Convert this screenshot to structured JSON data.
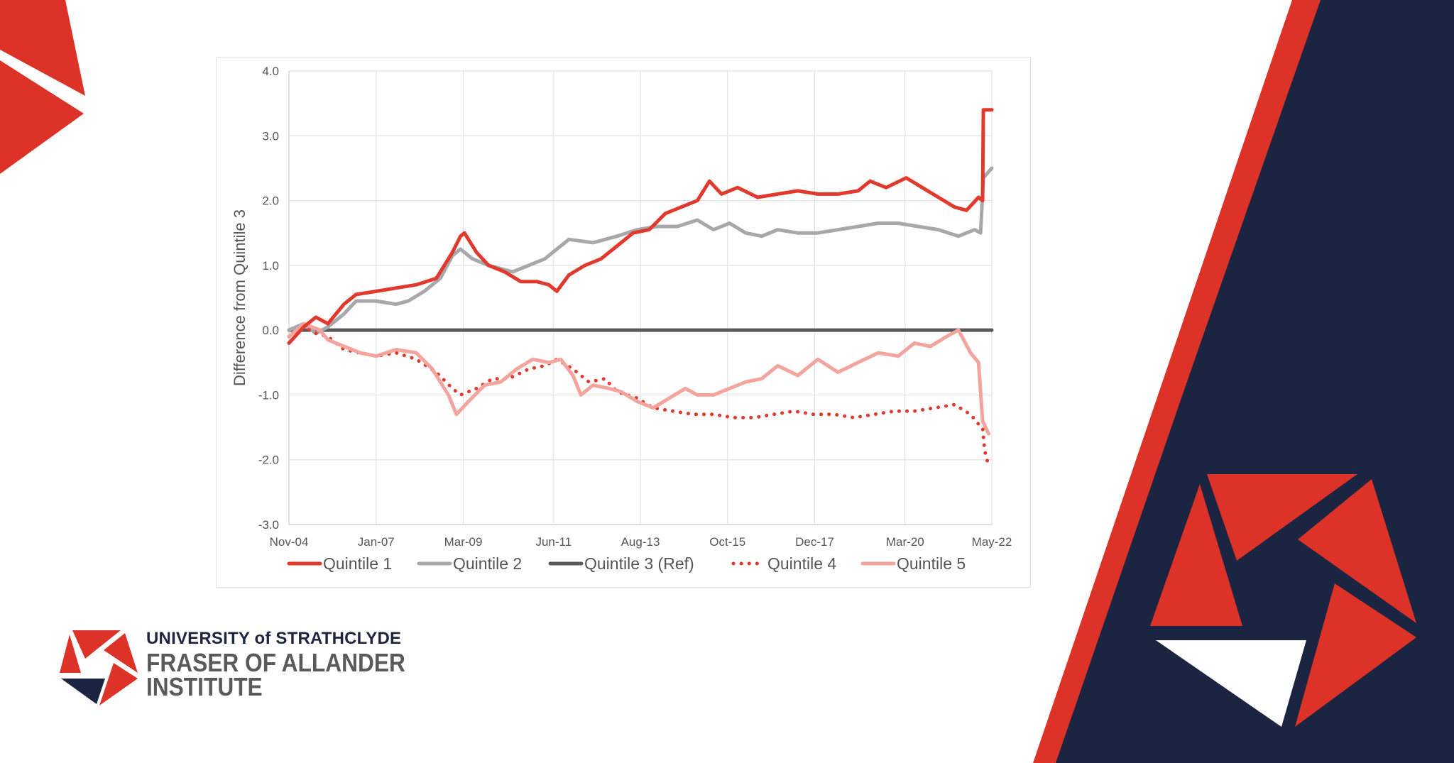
{
  "colors": {
    "navy": "#1b2440",
    "red": "#dc3228",
    "quintile1": "#e03a2e",
    "quintile2": "#a8a8a8",
    "quintile3": "#595959",
    "quintile4": "#e03a2e",
    "quintile5": "#f2a49d"
  },
  "logo": {
    "line1": "UNIVERSITY of STRATHCLYDE",
    "line2": "FRASER OF ALLANDER",
    "line3": "INSTITUTE"
  },
  "chart_data": {
    "type": "line",
    "title": "",
    "xlabel": "",
    "ylabel": "Difference from Quintile 3",
    "ylim": [
      -3.0,
      4.0
    ],
    "yticks": [
      "4.0",
      "3.0",
      "2.0",
      "1.0",
      "0.0",
      "-1.0",
      "-2.0",
      "-3.0"
    ],
    "ytick_values": [
      4,
      3,
      2,
      1,
      0,
      -1,
      -2,
      -3
    ],
    "xticks": [
      "Nov-04",
      "Jan-07",
      "Mar-09",
      "Jun-11",
      "Aug-13",
      "Oct-15",
      "Dec-17",
      "Mar-20",
      "May-22"
    ],
    "xtick_values": [
      2004.83,
      2007.0,
      2009.17,
      2011.42,
      2013.58,
      2015.75,
      2017.92,
      2020.17,
      2022.33
    ],
    "xlim": [
      2004.83,
      2022.33
    ],
    "grid": true,
    "legend_position": "bottom",
    "series": [
      {
        "name": "Quintile 1",
        "style": "solid",
        "points": [
          [
            2004.83,
            -0.2
          ],
          [
            2005.2,
            0.05
          ],
          [
            2005.5,
            0.2
          ],
          [
            2005.8,
            0.1
          ],
          [
            2006.2,
            0.4
          ],
          [
            2006.5,
            0.55
          ],
          [
            2007.0,
            0.6
          ],
          [
            2007.5,
            0.65
          ],
          [
            2008.0,
            0.7
          ],
          [
            2008.5,
            0.8
          ],
          [
            2008.9,
            1.2
          ],
          [
            2009.1,
            1.45
          ],
          [
            2009.2,
            1.5
          ],
          [
            2009.5,
            1.2
          ],
          [
            2009.8,
            1.0
          ],
          [
            2010.2,
            0.9
          ],
          [
            2010.6,
            0.75
          ],
          [
            2011.0,
            0.75
          ],
          [
            2011.3,
            0.7
          ],
          [
            2011.5,
            0.6
          ],
          [
            2011.8,
            0.85
          ],
          [
            2012.2,
            1.0
          ],
          [
            2012.6,
            1.1
          ],
          [
            2013.0,
            1.3
          ],
          [
            2013.4,
            1.5
          ],
          [
            2013.8,
            1.55
          ],
          [
            2014.2,
            1.8
          ],
          [
            2014.6,
            1.9
          ],
          [
            2015.0,
            2.0
          ],
          [
            2015.3,
            2.3
          ],
          [
            2015.6,
            2.1
          ],
          [
            2016.0,
            2.2
          ],
          [
            2016.5,
            2.05
          ],
          [
            2017.0,
            2.1
          ],
          [
            2017.5,
            2.15
          ],
          [
            2018.0,
            2.1
          ],
          [
            2018.5,
            2.1
          ],
          [
            2019.0,
            2.15
          ],
          [
            2019.3,
            2.3
          ],
          [
            2019.7,
            2.2
          ],
          [
            2020.2,
            2.35
          ],
          [
            2020.6,
            2.2
          ],
          [
            2021.0,
            2.05
          ],
          [
            2021.4,
            1.9
          ],
          [
            2021.7,
            1.85
          ],
          [
            2022.0,
            2.05
          ],
          [
            2022.1,
            2.0
          ],
          [
            2022.12,
            3.4
          ],
          [
            2022.33,
            3.4
          ]
        ]
      },
      {
        "name": "Quintile 2",
        "style": "solid",
        "points": [
          [
            2004.83,
            0.0
          ],
          [
            2005.2,
            0.1
          ],
          [
            2005.5,
            -0.05
          ],
          [
            2005.8,
            0.05
          ],
          [
            2006.2,
            0.25
          ],
          [
            2006.5,
            0.45
          ],
          [
            2007.0,
            0.45
          ],
          [
            2007.5,
            0.4
          ],
          [
            2007.8,
            0.45
          ],
          [
            2008.2,
            0.6
          ],
          [
            2008.6,
            0.8
          ],
          [
            2008.9,
            1.15
          ],
          [
            2009.1,
            1.25
          ],
          [
            2009.4,
            1.1
          ],
          [
            2009.8,
            1.0
          ],
          [
            2010.4,
            0.9
          ],
          [
            2010.8,
            1.0
          ],
          [
            2011.2,
            1.1
          ],
          [
            2011.5,
            1.25
          ],
          [
            2011.8,
            1.4
          ],
          [
            2012.4,
            1.35
          ],
          [
            2013.0,
            1.45
          ],
          [
            2013.5,
            1.55
          ],
          [
            2014.0,
            1.6
          ],
          [
            2014.5,
            1.6
          ],
          [
            2015.0,
            1.7
          ],
          [
            2015.4,
            1.55
          ],
          [
            2015.8,
            1.65
          ],
          [
            2016.2,
            1.5
          ],
          [
            2016.6,
            1.45
          ],
          [
            2017.0,
            1.55
          ],
          [
            2017.5,
            1.5
          ],
          [
            2018.0,
            1.5
          ],
          [
            2018.5,
            1.55
          ],
          [
            2019.0,
            1.6
          ],
          [
            2019.5,
            1.65
          ],
          [
            2020.0,
            1.65
          ],
          [
            2020.5,
            1.6
          ],
          [
            2021.0,
            1.55
          ],
          [
            2021.5,
            1.45
          ],
          [
            2021.9,
            1.55
          ],
          [
            2022.05,
            1.5
          ],
          [
            2022.12,
            2.35
          ],
          [
            2022.33,
            2.5
          ]
        ]
      },
      {
        "name": "Quintile 3 (Ref)",
        "style": "solid",
        "points": [
          [
            2004.83,
            0.0
          ],
          [
            2022.33,
            0.0
          ]
        ]
      },
      {
        "name": "Quintile 4",
        "style": "dotted",
        "points": [
          [
            2004.83,
            -0.1
          ],
          [
            2005.2,
            0.05
          ],
          [
            2005.5,
            -0.05
          ],
          [
            2005.8,
            -0.1
          ],
          [
            2006.2,
            -0.3
          ],
          [
            2006.6,
            -0.35
          ],
          [
            2007.0,
            -0.4
          ],
          [
            2007.5,
            -0.35
          ],
          [
            2008.0,
            -0.45
          ],
          [
            2008.5,
            -0.65
          ],
          [
            2008.9,
            -0.9
          ],
          [
            2009.1,
            -1.0
          ],
          [
            2009.5,
            -0.9
          ],
          [
            2009.9,
            -0.75
          ],
          [
            2010.3,
            -0.75
          ],
          [
            2010.8,
            -0.6
          ],
          [
            2011.2,
            -0.55
          ],
          [
            2011.5,
            -0.45
          ],
          [
            2011.9,
            -0.6
          ],
          [
            2012.3,
            -0.8
          ],
          [
            2012.7,
            -0.75
          ],
          [
            2013.0,
            -0.95
          ],
          [
            2013.5,
            -1.05
          ],
          [
            2013.9,
            -1.2
          ],
          [
            2014.4,
            -1.25
          ],
          [
            2014.9,
            -1.3
          ],
          [
            2015.4,
            -1.3
          ],
          [
            2015.9,
            -1.35
          ],
          [
            2016.4,
            -1.35
          ],
          [
            2016.9,
            -1.3
          ],
          [
            2017.4,
            -1.25
          ],
          [
            2017.9,
            -1.3
          ],
          [
            2018.4,
            -1.3
          ],
          [
            2018.9,
            -1.35
          ],
          [
            2019.4,
            -1.3
          ],
          [
            2019.9,
            -1.25
          ],
          [
            2020.4,
            -1.25
          ],
          [
            2020.9,
            -1.2
          ],
          [
            2021.4,
            -1.15
          ],
          [
            2021.8,
            -1.3
          ],
          [
            2022.0,
            -1.45
          ],
          [
            2022.1,
            -1.5
          ],
          [
            2022.15,
            -1.85
          ],
          [
            2022.25,
            -2.1
          ]
        ]
      },
      {
        "name": "Quintile 5",
        "style": "solid",
        "points": [
          [
            2004.83,
            -0.1
          ],
          [
            2005.2,
            0.1
          ],
          [
            2005.4,
            0.05
          ],
          [
            2005.6,
            0.0
          ],
          [
            2005.8,
            -0.15
          ],
          [
            2006.2,
            -0.25
          ],
          [
            2006.6,
            -0.35
          ],
          [
            2007.0,
            -0.4
          ],
          [
            2007.5,
            -0.3
          ],
          [
            2008.0,
            -0.35
          ],
          [
            2008.4,
            -0.6
          ],
          [
            2008.8,
            -1.0
          ],
          [
            2009.0,
            -1.3
          ],
          [
            2009.3,
            -1.1
          ],
          [
            2009.7,
            -0.85
          ],
          [
            2010.1,
            -0.8
          ],
          [
            2010.5,
            -0.6
          ],
          [
            2010.9,
            -0.45
          ],
          [
            2011.3,
            -0.5
          ],
          [
            2011.6,
            -0.45
          ],
          [
            2011.9,
            -0.7
          ],
          [
            2012.1,
            -1.0
          ],
          [
            2012.4,
            -0.85
          ],
          [
            2012.8,
            -0.9
          ],
          [
            2013.1,
            -0.95
          ],
          [
            2013.5,
            -1.1
          ],
          [
            2013.9,
            -1.2
          ],
          [
            2014.3,
            -1.05
          ],
          [
            2014.7,
            -0.9
          ],
          [
            2015.0,
            -1.0
          ],
          [
            2015.4,
            -1.0
          ],
          [
            2015.8,
            -0.9
          ],
          [
            2016.2,
            -0.8
          ],
          [
            2016.6,
            -0.75
          ],
          [
            2017.0,
            -0.55
          ],
          [
            2017.5,
            -0.7
          ],
          [
            2018.0,
            -0.45
          ],
          [
            2018.5,
            -0.65
          ],
          [
            2019.0,
            -0.5
          ],
          [
            2019.5,
            -0.35
          ],
          [
            2020.0,
            -0.4
          ],
          [
            2020.4,
            -0.2
          ],
          [
            2020.8,
            -0.25
          ],
          [
            2021.2,
            -0.1
          ],
          [
            2021.5,
            0.0
          ],
          [
            2021.8,
            -0.35
          ],
          [
            2022.0,
            -0.5
          ],
          [
            2022.1,
            -1.4
          ],
          [
            2022.25,
            -1.6
          ]
        ]
      }
    ]
  }
}
